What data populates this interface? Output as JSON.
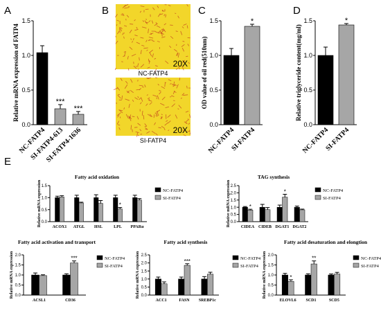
{
  "panel_labels": {
    "A": "A",
    "B": "B",
    "C": "C",
    "D": "D",
    "E": "E"
  },
  "micrographs": {
    "top_label": "NC-FATP4",
    "bottom_label": "SI-FATP4",
    "magnification_top": "20X",
    "magnification_bottom": "20X"
  },
  "colors": {
    "nc": "#000000",
    "si": "#a6a6a6",
    "micro_bg": "#f2d62a",
    "micro_stain": "#c0391e"
  },
  "chart_data": [
    {
      "id": "A",
      "type": "bar",
      "ylabel": "Relative mRNA expression of FATP4",
      "categories": [
        "NC-FATP4",
        "SI-FATP4-613",
        "SI-FATP4-1636"
      ],
      "values": [
        1.04,
        0.23,
        0.15
      ],
      "errors": [
        0.1,
        0.06,
        0.04
      ],
      "sig": [
        "",
        "***",
        "***"
      ],
      "ylim": [
        0,
        1.5
      ],
      "yticks": [
        0.0,
        0.5,
        1.0,
        1.5
      ],
      "tick_format": 1
    },
    {
      "id": "C",
      "type": "bar",
      "ylabel": "OD value of oil red(510nm)",
      "categories": [
        "NC-FATP4",
        "SI-FATP4"
      ],
      "values": [
        1.0,
        1.42
      ],
      "errors": [
        0.1,
        0.03
      ],
      "sig": [
        "",
        "*"
      ],
      "ylim": [
        0,
        1.5
      ],
      "yticks": [
        0.0,
        0.5,
        1.0,
        1.5
      ],
      "tick_format": 1
    },
    {
      "id": "D",
      "type": "bar",
      "ylabel": "Relative triglyceride content(mg/ml)",
      "categories": [
        "NC-FATP4",
        "SI-FATP4"
      ],
      "values": [
        1.0,
        1.44
      ],
      "errors": [
        0.12,
        0.02
      ],
      "sig": [
        "",
        "*"
      ],
      "ylim": [
        0,
        1.5
      ],
      "yticks": [
        0.0,
        0.5,
        1.0,
        1.5
      ],
      "tick_format": 1
    },
    {
      "id": "E1",
      "type": "bar",
      "title": "Fatty acid oxidation",
      "ylabel": "Relative mRNA expression",
      "categories": [
        "ACOX1",
        "ATGL",
        "HSL",
        "LPL",
        "PPARα"
      ],
      "series": [
        {
          "name": "NC-FATP4",
          "values": [
            1.0,
            1.0,
            1.0,
            1.0,
            1.0
          ],
          "errors": [
            0.06,
            0.1,
            0.12,
            0.1,
            0.1
          ]
        },
        {
          "name": "SI-FATP4",
          "values": [
            1.03,
            0.78,
            0.76,
            0.53,
            0.9
          ],
          "errors": [
            0.05,
            0.03,
            0.12,
            0.06,
            0.06
          ]
        }
      ],
      "sig": [
        "",
        "",
        "",
        "*",
        ""
      ],
      "ylim": [
        0,
        1.5
      ],
      "yticks": [
        0.0,
        0.5,
        1.0,
        1.5
      ],
      "tick_format": 1
    },
    {
      "id": "E2",
      "type": "bar",
      "title": "TAG synthesis",
      "ylabel": "Relative mRNA expression",
      "categories": [
        "CIDEA",
        "CIDEB",
        "DGAT1",
        "DGAT2"
      ],
      "series": [
        {
          "name": "NC-FATP4",
          "values": [
            1.0,
            1.0,
            1.0,
            1.0
          ],
          "errors": [
            0.05,
            0.2,
            0.15,
            0.08
          ]
        },
        {
          "name": "SI-FATP4",
          "values": [
            0.8,
            0.83,
            1.7,
            0.82
          ],
          "errors": [
            0.06,
            0.15,
            0.2,
            0.05
          ]
        }
      ],
      "sig": [
        "*",
        "",
        "*",
        ""
      ],
      "ylim": [
        0,
        2.5
      ],
      "yticks": [
        0.0,
        0.5,
        1.0,
        1.5,
        2.0,
        2.5
      ],
      "tick_format": 1
    },
    {
      "id": "E3",
      "type": "bar",
      "title": "Fatty acid activation and transport",
      "ylabel": "Relative mRNA expression",
      "categories": [
        "ACSL1",
        "CD36"
      ],
      "series": [
        {
          "name": "NC-FATP4",
          "values": [
            1.0,
            1.0
          ],
          "errors": [
            0.1,
            0.06
          ]
        },
        {
          "name": "SI-FATP4",
          "values": [
            0.97,
            1.6
          ],
          "errors": [
            0.04,
            0.1
          ]
        }
      ],
      "sig": [
        "",
        "***"
      ],
      "ylim": [
        0,
        2.0
      ],
      "yticks": [
        0.0,
        0.5,
        1.0,
        1.5,
        2.0
      ],
      "tick_format": 1
    },
    {
      "id": "E4",
      "type": "bar",
      "title": "Fatty acid synthesis",
      "ylabel": "Relative mRNA expression",
      "categories": [
        "ACC1",
        "FASN",
        "SREBP1c"
      ],
      "series": [
        {
          "name": "NC-FATP4",
          "values": [
            1.0,
            1.0,
            1.0
          ],
          "errors": [
            0.12,
            0.12,
            0.15
          ]
        },
        {
          "name": "SI-FATP4",
          "values": [
            0.7,
            1.85,
            1.3
          ],
          "errors": [
            0.12,
            0.1,
            0.12
          ]
        }
      ],
      "sig": [
        "",
        "***",
        ""
      ],
      "ylim": [
        0,
        2.5
      ],
      "yticks": [
        0.0,
        0.5,
        1.0,
        1.5,
        2.0,
        2.5
      ],
      "tick_format": 1
    },
    {
      "id": "E5",
      "type": "bar",
      "title": "Fatty acid desaturation and elongtion",
      "ylabel": "Relative mRNA expression",
      "categories": [
        "ELOVL6",
        "SCD1",
        "SCD5"
      ],
      "series": [
        {
          "name": "NC-FATP4",
          "values": [
            1.0,
            1.0,
            1.0
          ],
          "errors": [
            0.08,
            0.06,
            0.05
          ]
        },
        {
          "name": "SI-FATP4",
          "values": [
            0.68,
            1.55,
            1.05
          ],
          "errors": [
            0.08,
            0.15,
            0.08
          ]
        }
      ],
      "sig": [
        "*",
        "**",
        ""
      ],
      "ylim": [
        0,
        2.0
      ],
      "yticks": [
        0.0,
        0.5,
        1.0,
        1.5,
        2.0
      ],
      "tick_format": 1
    }
  ]
}
